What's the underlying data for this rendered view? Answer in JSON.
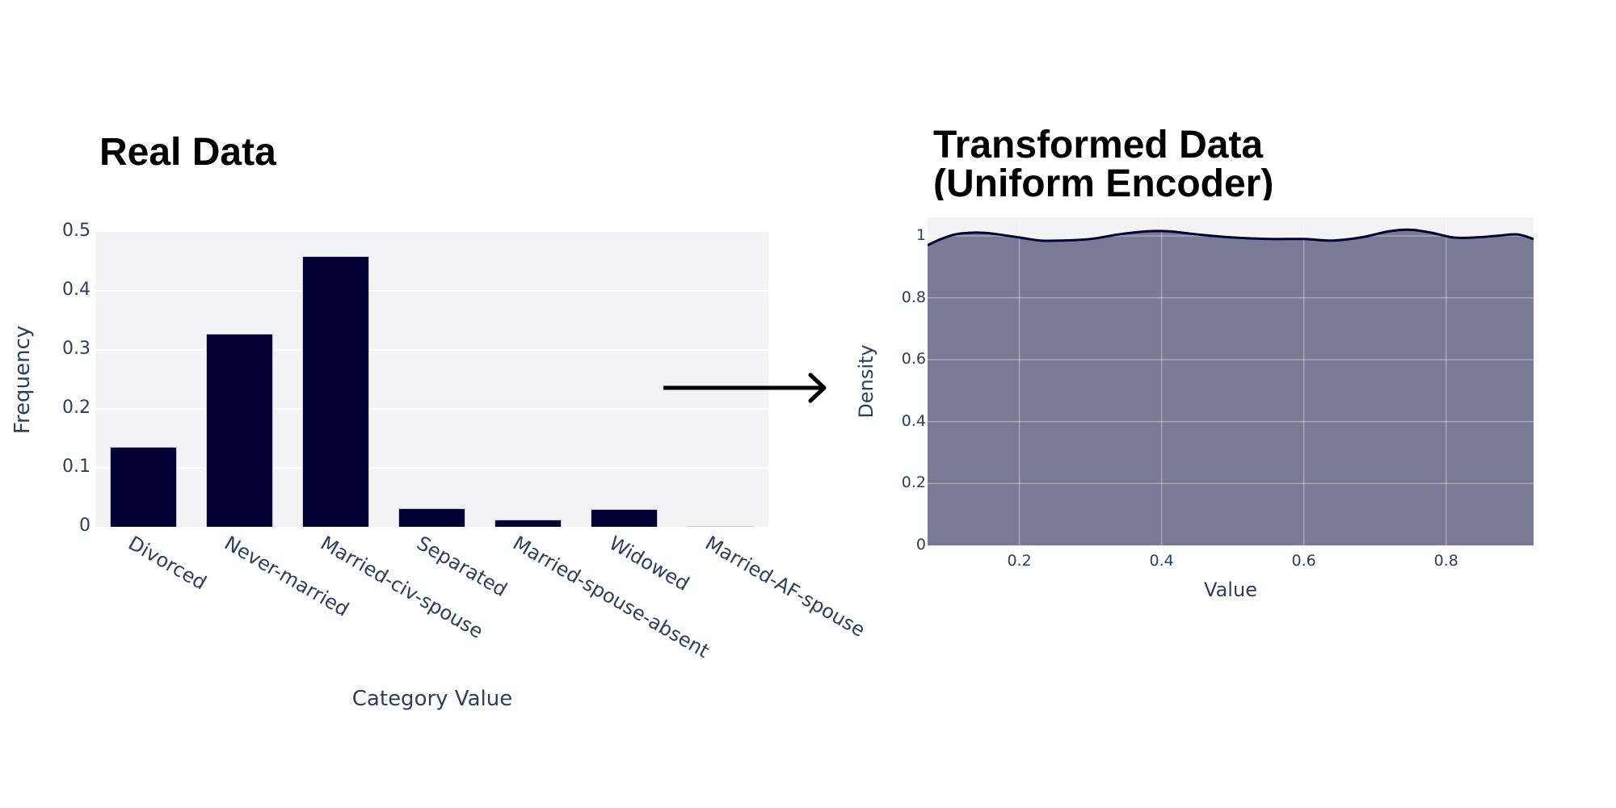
{
  "left_panel": {
    "title": "Real Data",
    "y_axis_title": "Frequency",
    "x_axis_title": "Category Value",
    "y_ticks": [
      "0",
      "0.1",
      "0.2",
      "0.3",
      "0.4",
      "0.5"
    ]
  },
  "right_panel": {
    "title_line1": "Transformed Data",
    "title_line2": "(Uniform Encoder)",
    "y_axis_title": "Density",
    "x_axis_title": "Value",
    "y_ticks": [
      "0",
      "0.2",
      "0.4",
      "0.6",
      "0.8",
      "1"
    ],
    "x_ticks": [
      "0.2",
      "0.4",
      "0.6",
      "0.8"
    ]
  },
  "colors": {
    "bar": "#000033",
    "density_fill": "#7a7a96",
    "density_line": "#000033",
    "plot_bg": "#f3f3f6",
    "axis_text": "#2a3f5f",
    "arrow": "#000000"
  },
  "chart_data": [
    {
      "type": "bar",
      "title": "Real Data",
      "xlabel": "Category Value",
      "ylabel": "Frequency",
      "categories": [
        "Divorced",
        "Never-married",
        "Married-civ-spouse",
        "Separated",
        "Married-spouse-absent",
        "Widowed",
        "Married-AF-spouse"
      ],
      "values": [
        0.136,
        0.327,
        0.459,
        0.031,
        0.013,
        0.03,
        0.001
      ],
      "ylim": [
        0,
        0.5
      ],
      "grid": true,
      "legend": "none"
    },
    {
      "type": "area",
      "title": "Transformed Data (Uniform Encoder)",
      "xlabel": "Value",
      "ylabel": "Density",
      "x": [
        0.071,
        0.09,
        0.11,
        0.13,
        0.15,
        0.17,
        0.2,
        0.23,
        0.26,
        0.3,
        0.34,
        0.38,
        0.41,
        0.45,
        0.5,
        0.55,
        0.6,
        0.64,
        0.68,
        0.72,
        0.75,
        0.78,
        0.81,
        0.84,
        0.87,
        0.9,
        0.923
      ],
      "values": [
        0.97,
        0.99,
        1.005,
        1.01,
        1.01,
        1.005,
        0.995,
        0.985,
        0.985,
        0.99,
        1.005,
        1.015,
        1.015,
        1.005,
        0.995,
        0.99,
        0.99,
        0.985,
        0.995,
        1.015,
        1.02,
        1.01,
        0.995,
        0.995,
        1.0,
        1.005,
        0.99
      ],
      "xlim": [
        0.071,
        0.923
      ],
      "ylim": [
        0,
        1.06
      ],
      "x_ticks": [
        0.2,
        0.4,
        0.6,
        0.8
      ],
      "y_ticks": [
        0,
        0.2,
        0.4,
        0.6,
        0.8,
        1
      ],
      "grid": true,
      "legend": "none"
    }
  ]
}
